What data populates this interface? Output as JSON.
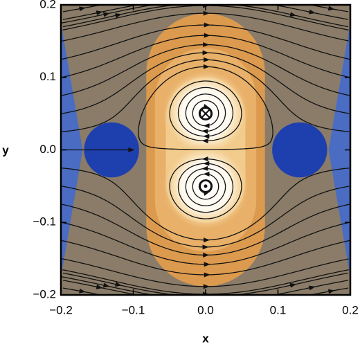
{
  "chart_data": {
    "type": "stream",
    "xlabel": "x",
    "ylabel": "y",
    "xlim": [
      -0.2,
      0.2
    ],
    "ylim": [
      -0.2,
      0.2
    ],
    "xticks": [
      {
        "value": -0.2,
        "label": "−0.2"
      },
      {
        "value": -0.1,
        "label": "−0.1"
      },
      {
        "value": 0,
        "label": "0.0"
      },
      0.1,
      0.2
    ],
    "yticks": [
      {
        "value": -0.2,
        "label": "−0.2"
      },
      {
        "value": -0.1,
        "label": "−0.1"
      },
      {
        "value": 0,
        "label": "0.0"
      },
      0.1,
      0.2
    ],
    "currents": [
      {
        "x": 0,
        "y": 0.05,
        "sign": -1
      },
      {
        "x": 0,
        "y": -0.05,
        "sign": 1
      }
    ],
    "blobs": [
      {
        "x": -0.13,
        "y": 0
      },
      {
        "x": 0.13,
        "y": 0
      }
    ]
  }
}
